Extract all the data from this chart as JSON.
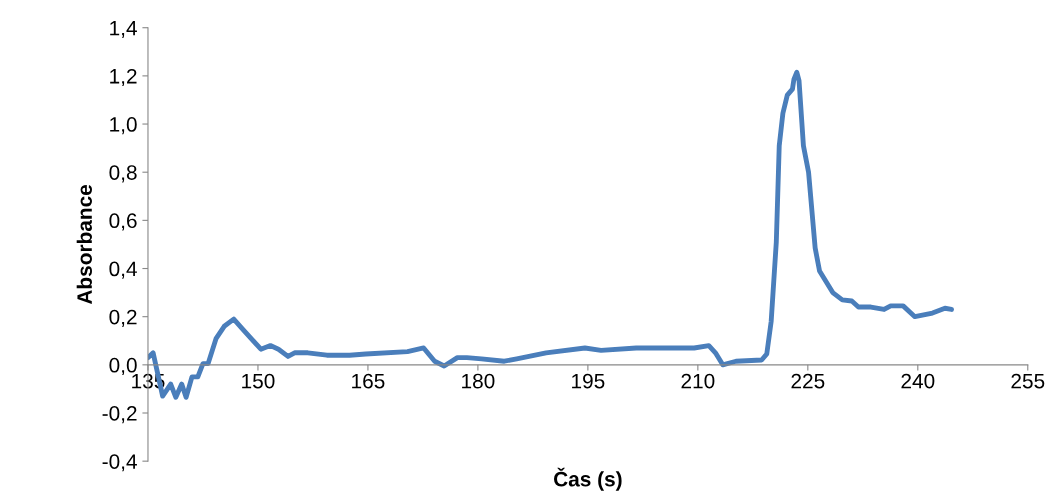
{
  "chart_data": {
    "type": "line",
    "xlabel": "Čas (s)",
    "ylabel": "Absorbance",
    "xlim": [
      135,
      255
    ],
    "xticks": [
      135,
      150,
      165,
      180,
      195,
      210,
      225,
      240,
      255
    ],
    "ylim": [
      -0.4,
      1.4
    ],
    "yticks": [
      {
        "value": -0.4,
        "label": "-0,4"
      },
      {
        "value": -0.2,
        "label": "-0,2"
      },
      {
        "value": 0.0,
        "label": "0,0"
      },
      {
        "value": 0.2,
        "label": "0,2"
      },
      {
        "value": 0.4,
        "label": "0,4"
      },
      {
        "value": 0.6,
        "label": "0,6"
      },
      {
        "value": 0.8,
        "label": "0,8"
      },
      {
        "value": 1.0,
        "label": "1,0"
      },
      {
        "value": 1.2,
        "label": "1,2"
      },
      {
        "value": 1.4,
        "label": "1,4"
      }
    ],
    "grid": false,
    "marker": "none",
    "line_style": "solid",
    "series": [
      {
        "color": "#4a7ebb",
        "x": [
          135.0,
          135.7,
          137.0,
          138.1,
          138.8,
          139.6,
          140.2,
          141.0,
          141.8,
          142.5,
          143.2,
          144.3,
          145.4,
          146.7,
          148.0,
          150.4,
          151.7,
          152.8,
          154.1,
          155.0,
          156.8,
          159.4,
          162.5,
          164.7,
          170.4,
          172.6,
          174.1,
          175.4,
          177.2,
          178.5,
          180.5,
          183.6,
          185.3,
          189.3,
          194.6,
          196.8,
          201.6,
          209.5,
          211.5,
          212.4,
          213.4,
          215.2,
          218.7,
          219.4,
          220.0,
          220.7,
          221.1,
          221.6,
          222.2,
          222.9,
          223.1,
          223.5,
          223.8,
          224.4,
          225.1,
          226.0,
          226.6,
          228.4,
          229.7,
          231.0,
          231.9,
          233.6,
          235.4,
          236.3,
          238.0,
          239.6,
          242.0,
          243.7,
          244.6
        ],
        "values": [
          0.03,
          0.05,
          -0.13,
          -0.08,
          -0.135,
          -0.08,
          -0.135,
          -0.05,
          -0.05,
          0.005,
          0.005,
          0.11,
          0.16,
          0.19,
          0.145,
          0.065,
          0.08,
          0.065,
          0.035,
          0.05,
          0.05,
          0.04,
          0.04,
          0.045,
          0.055,
          0.07,
          0.015,
          -0.005,
          0.03,
          0.03,
          0.025,
          0.015,
          0.025,
          0.05,
          0.07,
          0.06,
          0.07,
          0.07,
          0.08,
          0.05,
          0.0,
          0.015,
          0.02,
          0.045,
          0.18,
          0.51,
          0.91,
          1.045,
          1.12,
          1.145,
          1.185,
          1.215,
          1.18,
          0.91,
          0.8,
          0.485,
          0.39,
          0.3,
          0.27,
          0.265,
          0.24,
          0.24,
          0.23,
          0.245,
          0.245,
          0.2,
          0.215,
          0.235,
          0.23
        ]
      }
    ]
  }
}
